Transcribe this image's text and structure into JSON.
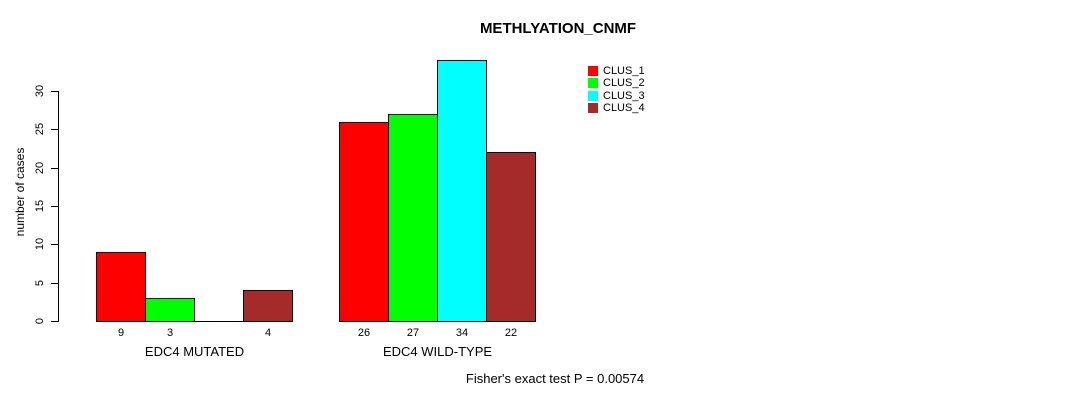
{
  "page": {
    "background": "#ffffff",
    "text_color": "#000000"
  },
  "chart_data": {
    "type": "bar",
    "title": "METHLYATION_CNMF",
    "xlabel": "",
    "ylabel": "number of cases",
    "ylim": [
      0,
      34.5
    ],
    "yticks": [
      0,
      5,
      10,
      15,
      20,
      25,
      30
    ],
    "grid": false,
    "legend_position": "top-right",
    "categories": [
      "EDC4 MUTATED",
      "EDC4 WILD-TYPE"
    ],
    "series": [
      {
        "name": "CLUS_1",
        "color": "#ff0000",
        "values": [
          9,
          26
        ]
      },
      {
        "name": "CLUS_2",
        "color": "#00ff00",
        "values": [
          3,
          27
        ]
      },
      {
        "name": "CLUS_3",
        "color": "#00ffff",
        "values": [
          0,
          34
        ]
      },
      {
        "name": "CLUS_4",
        "color": "#a52a2a",
        "values": [
          4,
          22
        ]
      }
    ],
    "bar_value_labels": [
      [
        "9",
        "3",
        "",
        "4"
      ],
      [
        "26",
        "27",
        "34",
        "22"
      ]
    ],
    "annotation": "Fisher's exact test P = 0.00574"
  }
}
